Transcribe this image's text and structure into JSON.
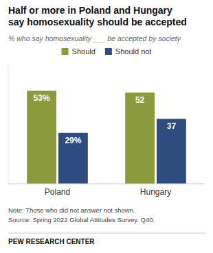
{
  "chart_data": {
    "type": "bar",
    "title": "Half or more in Poland and Hungary\nsay homosexuality should be accepted",
    "subtitle": "% who say homosexuality ___ be accepted by society",
    "categories": [
      "Poland",
      "Hungary"
    ],
    "series": [
      {
        "name": "Should",
        "color": "#8a9a3c",
        "values": [
          53,
          52
        ],
        "value_labels": [
          "53%",
          "52"
        ]
      },
      {
        "name": "Should not",
        "color": "#2e4c7e",
        "values": [
          29,
          37
        ],
        "value_labels": [
          "29%",
          "37"
        ]
      }
    ],
    "ylim": [
      0,
      68
    ],
    "data_labels": true,
    "tick_labels": "x",
    "legend": "top",
    "notes": [
      "Note: Those who did not answer not shown.",
      "Source: Spring 2022 Global Attitudes Survey. Q40."
    ],
    "footer": "PEW RESEARCH CENTER"
  }
}
